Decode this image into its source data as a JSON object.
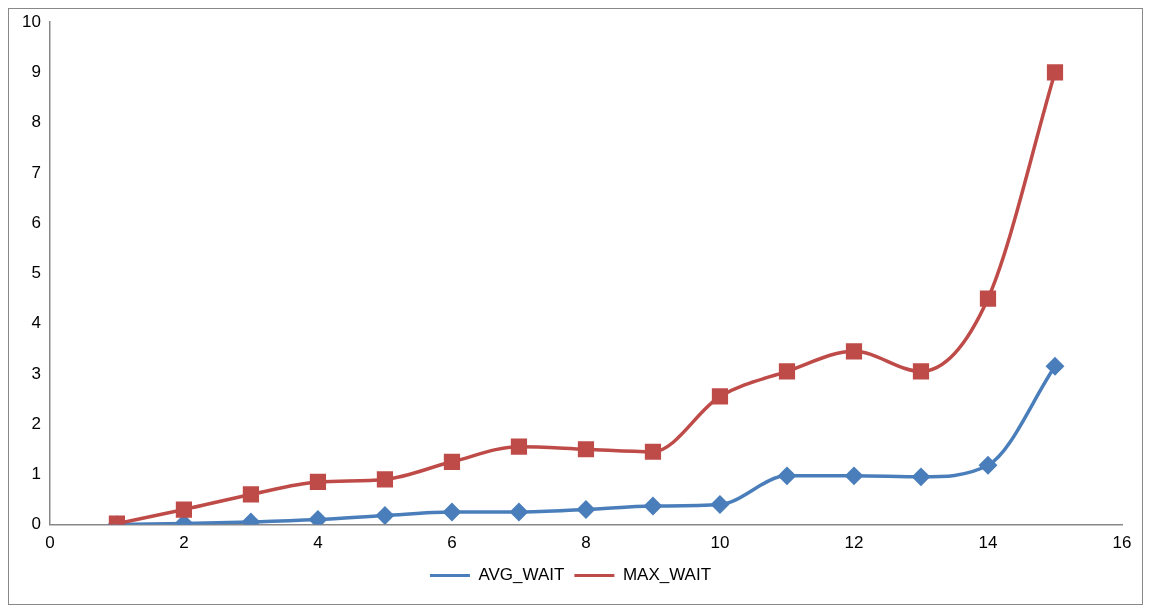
{
  "chart_data": {
    "type": "line",
    "x": [
      1,
      2,
      3,
      4,
      5,
      6,
      7,
      8,
      9,
      10,
      11,
      12,
      13,
      14,
      15
    ],
    "xlim": [
      0,
      16
    ],
    "xticks": [
      0,
      2,
      4,
      6,
      8,
      10,
      12,
      14,
      16
    ],
    "ylim": [
      0,
      10
    ],
    "yticks": [
      0,
      1,
      2,
      3,
      4,
      5,
      6,
      7,
      8,
      9,
      10
    ],
    "grid": false,
    "legend": "bottom",
    "line_style": "solid",
    "series": [
      {
        "name": "AVG_WAIT",
        "color": "#4a7ebb",
        "marker": "diamond",
        "values": [
          0,
          0.02,
          0.05,
          0.1,
          0.18,
          0.25,
          0.25,
          0.3,
          0.37,
          0.4,
          0.97,
          0.97,
          0.95,
          1.18,
          3.15
        ]
      },
      {
        "name": "MAX_WAIT",
        "color": "#be4b48",
        "marker": "square",
        "values": [
          0.02,
          0.3,
          0.6,
          0.85,
          0.9,
          1.25,
          1.55,
          1.5,
          1.45,
          2.55,
          3.05,
          3.45,
          3.05,
          4.5,
          9.0
        ]
      }
    ]
  }
}
